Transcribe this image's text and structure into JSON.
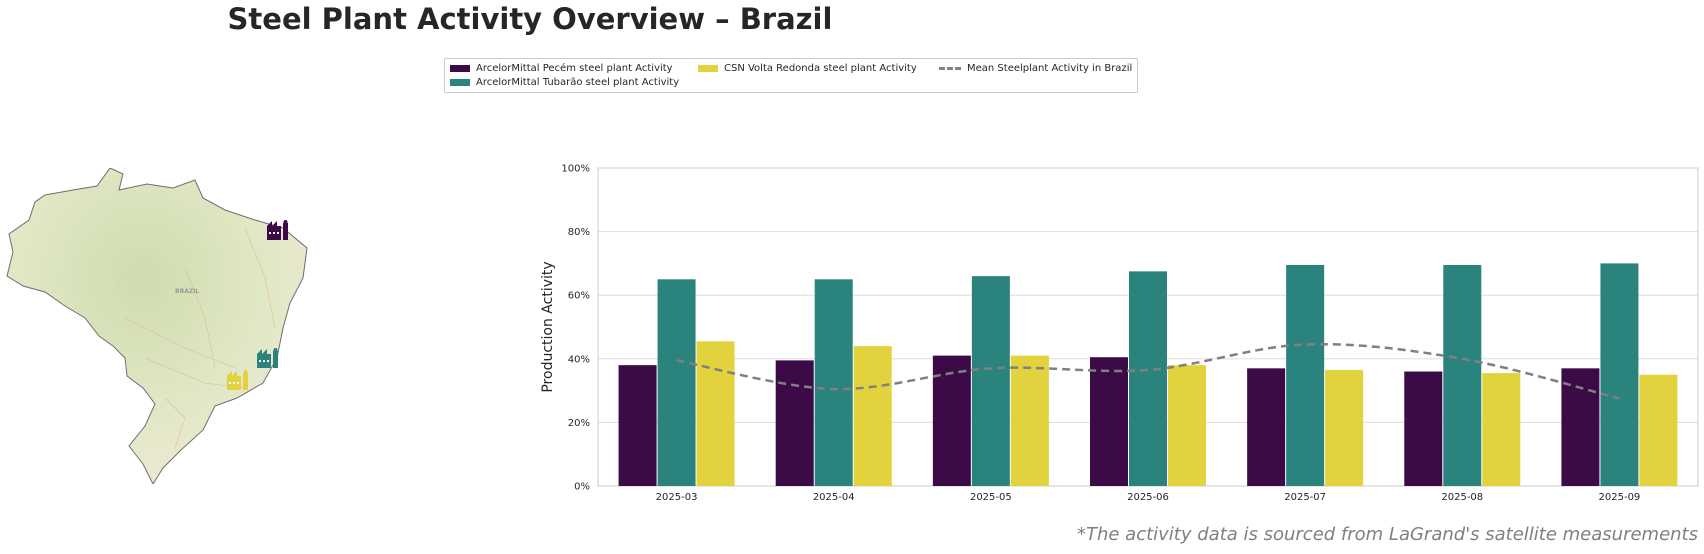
{
  "title": "Steel Plant Activity Overview – Brazil",
  "footnote": "*The activity data is sourced from LaGrand's satellite measurements",
  "legend": {
    "items": [
      {
        "label": "ArcelorMittal Pecém steel plant Activity",
        "color": "#3b0a47"
      },
      {
        "label": "ArcelorMittal Tubarão steel plant Activity",
        "color": "#2b837e"
      },
      {
        "label": "CSN Volta Redonda steel plant Activity",
        "color": "#e2d23e"
      },
      {
        "label": "Mean Steelplant Activity in Brazil",
        "color": "#808080"
      }
    ]
  },
  "map": {
    "country_label": "BRAZIL",
    "plants": [
      {
        "name": "ArcelorMittal Pecém",
        "color": "#3b0a47",
        "icon": "factory-icon"
      },
      {
        "name": "ArcelorMittal Tubarão",
        "color": "#2b837e",
        "icon": "factory-icon"
      },
      {
        "name": "CSN Volta Redonda",
        "color": "#e2d23e",
        "icon": "factory-icon"
      }
    ]
  },
  "chart_data": {
    "type": "bar",
    "ylabel": "Production Activity",
    "xlabel": "",
    "ylim": [
      0,
      100
    ],
    "yticks": [
      "0%",
      "20%",
      "40%",
      "60%",
      "80%",
      "100%"
    ],
    "categories": [
      "2025-03",
      "2025-04",
      "2025-05",
      "2025-06",
      "2025-07",
      "2025-08",
      "2025-09"
    ],
    "series": [
      {
        "name": "ArcelorMittal Pecém steel plant Activity",
        "color": "#3b0a47",
        "values": [
          38,
          39.5,
          41,
          40.5,
          37,
          36,
          37
        ]
      },
      {
        "name": "ArcelorMittal Tubarão steel plant Activity",
        "color": "#2b837e",
        "values": [
          65,
          65,
          66,
          67.5,
          69.5,
          69.5,
          70
        ]
      },
      {
        "name": "CSN Volta Redonda steel plant Activity",
        "color": "#e2d23e",
        "values": [
          45.5,
          44,
          41,
          38,
          36.5,
          35.5,
          35
        ]
      }
    ],
    "line": {
      "name": "Mean Steelplant Activity in Brazil",
      "color": "#808080",
      "values": [
        39.5,
        30.5,
        37,
        36.5,
        44.5,
        40,
        27.5
      ]
    },
    "grid": true,
    "legend_position": "top-center"
  }
}
